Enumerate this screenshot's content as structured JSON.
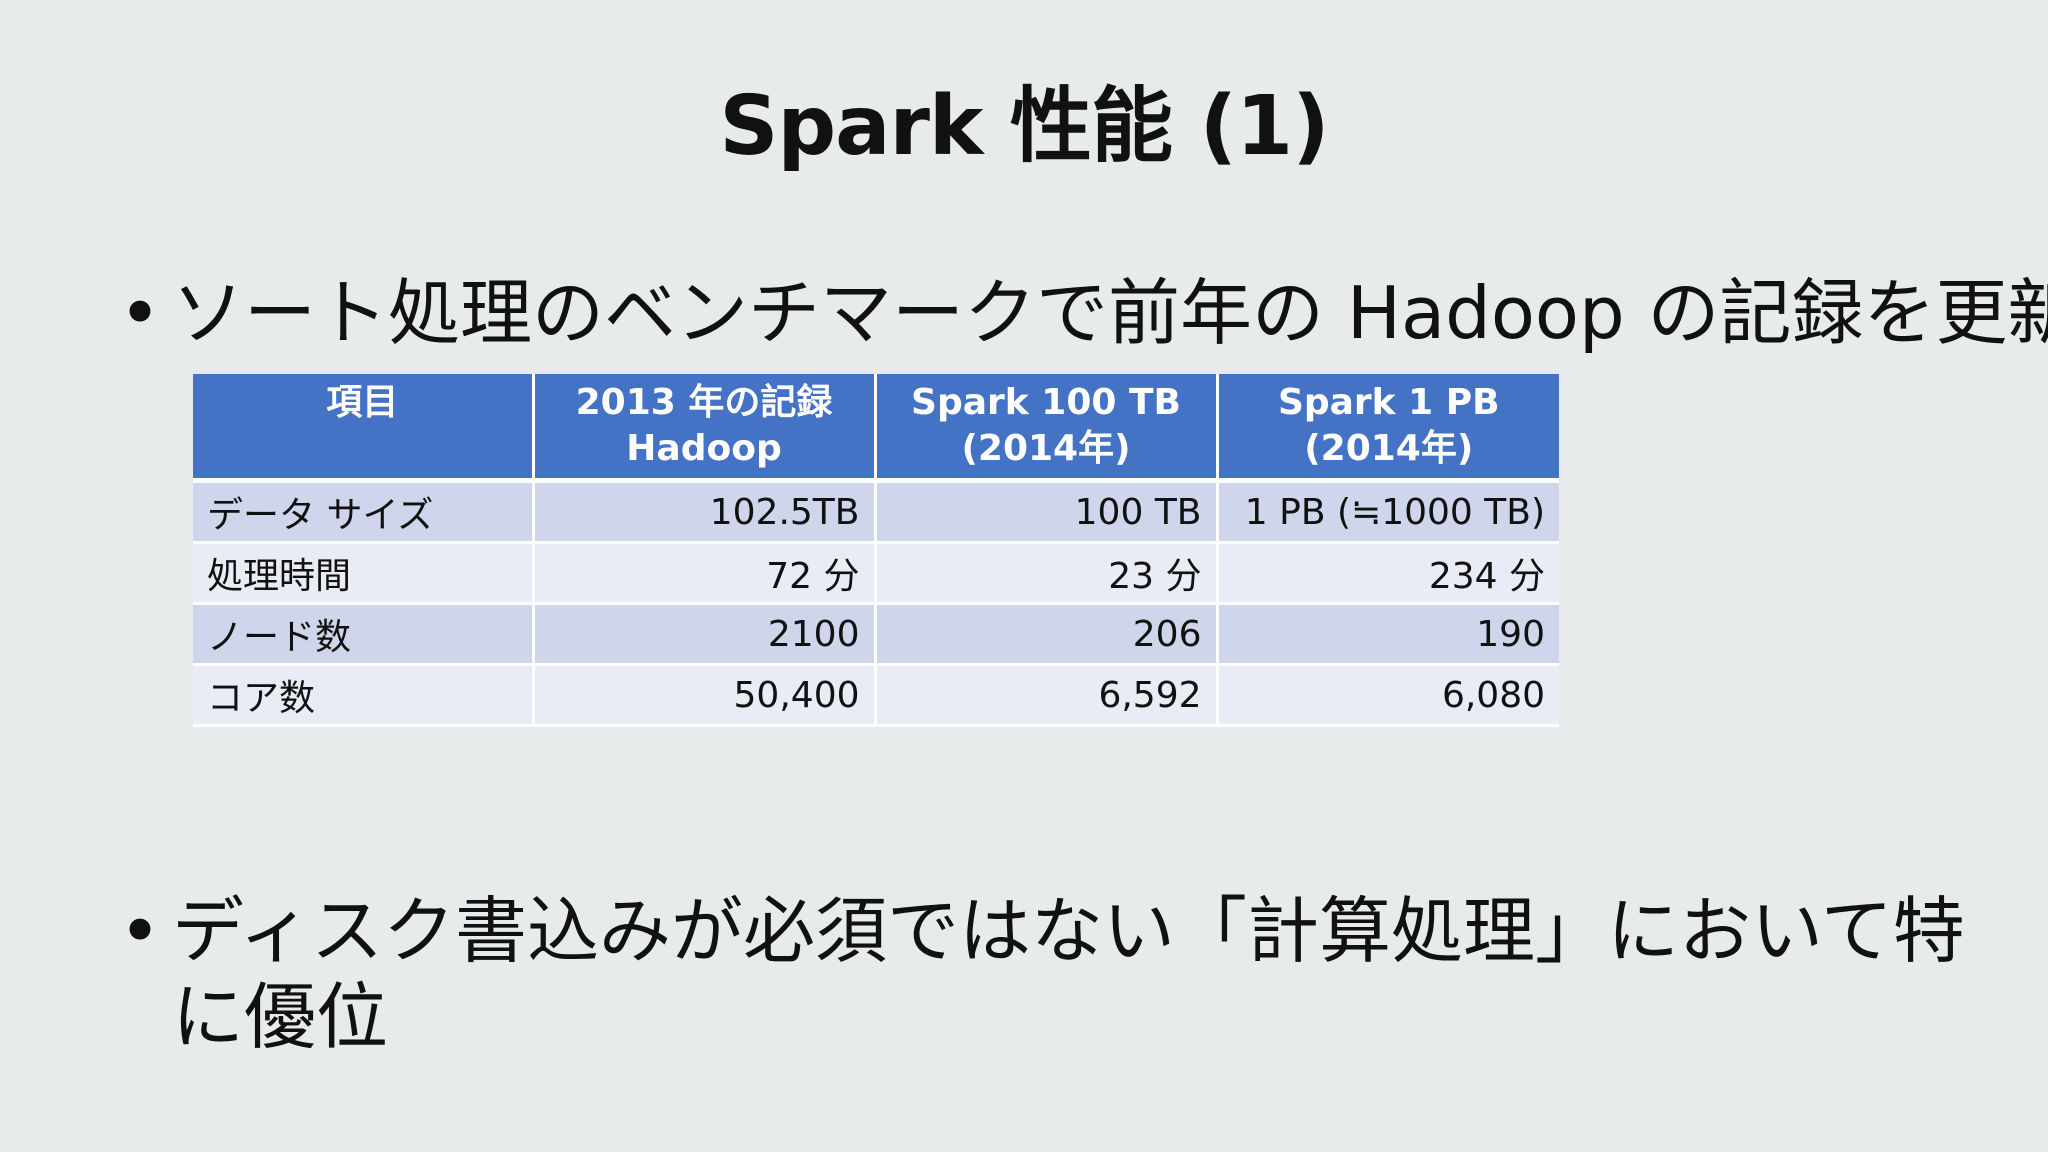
{
  "slide": {
    "title": "Spark 性能 (1)",
    "bullets": [
      {
        "text": "ソート処理のベンチマークで前年の Hadoop の記録を更新"
      },
      {
        "text": "ディスク書込みが必須ではない「計算処理」において特に優位"
      }
    ]
  },
  "table": {
    "headers": [
      {
        "line1": "項目",
        "line2": ""
      },
      {
        "line1": "2013 年の記録",
        "line2": "Hadoop"
      },
      {
        "line1": "Spark 100 TB",
        "line2": "(2014年)"
      },
      {
        "line1": "Spark 1 PB",
        "line2": "(2014年)"
      }
    ],
    "rows": [
      {
        "label": "データ サイズ",
        "values": [
          "102.5TB",
          "100 TB",
          "1 PB (≒1000 TB)"
        ]
      },
      {
        "label": "処理時間",
        "values": [
          "72 分",
          "23 分",
          "234 分"
        ]
      },
      {
        "label": "ノード数",
        "values": [
          "2100",
          "206",
          "190"
        ]
      },
      {
        "label": "コア数",
        "values": [
          "50,400",
          "6,592",
          "6,080"
        ]
      }
    ]
  },
  "colors": {
    "background": "#e8ebec",
    "header_fill": "#4472c4",
    "row_fill_dark": "#cfd5ea",
    "row_fill_light": "#e9ebf5"
  }
}
